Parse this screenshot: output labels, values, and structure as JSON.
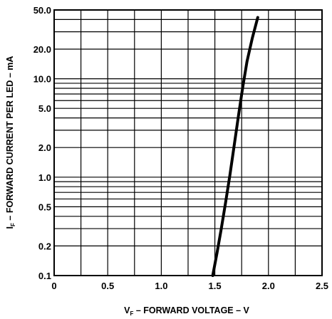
{
  "chart_data": {
    "type": "line",
    "xlabel": {
      "symbol": "V",
      "subscript": "F",
      "text": " – FORWARD VOLTAGE – V"
    },
    "ylabel": {
      "symbol": "I",
      "subscript": "F",
      "text": " – FORWARD CURRENT PER LED – mA"
    },
    "xlim": [
      0,
      2.5
    ],
    "ylim": [
      0.1,
      50
    ],
    "yscale": "log",
    "grid": true,
    "x_ticks": [
      {
        "value": 0,
        "label": "0"
      },
      {
        "value": 0.5,
        "label": "0.5"
      },
      {
        "value": 1.0,
        "label": "1.0"
      },
      {
        "value": 1.5,
        "label": "1.5"
      },
      {
        "value": 2.0,
        "label": "2.0"
      },
      {
        "value": 2.5,
        "label": "2.5"
      }
    ],
    "y_ticks": [
      {
        "value": 0.1,
        "label": "0.1"
      },
      {
        "value": 0.2,
        "label": "0.2"
      },
      {
        "value": 0.5,
        "label": "0.5"
      },
      {
        "value": 1.0,
        "label": "1.0"
      },
      {
        "value": 2.0,
        "label": "2.0"
      },
      {
        "value": 5.0,
        "label": "5.0"
      },
      {
        "value": 10.0,
        "label": "10.0"
      },
      {
        "value": 20.0,
        "label": "20.0"
      },
      {
        "value": 50.0,
        "label": "50.0"
      }
    ],
    "y_minor_gridlines": [
      0.3,
      0.4,
      0.6,
      0.7,
      0.8,
      0.9,
      3,
      4,
      6,
      7,
      8,
      9,
      30,
      40
    ],
    "x_minor_gridlines": [
      0.25,
      0.75,
      1.25,
      1.75,
      2.25
    ],
    "series": [
      {
        "x": [
          1.48,
          1.52,
          1.56,
          1.6,
          1.64,
          1.68,
          1.72,
          1.76,
          1.8,
          1.85,
          1.9
        ],
        "y": [
          0.1,
          0.17,
          0.3,
          0.55,
          1.05,
          2.1,
          4.2,
          8.2,
          15,
          26,
          42
        ]
      }
    ]
  }
}
